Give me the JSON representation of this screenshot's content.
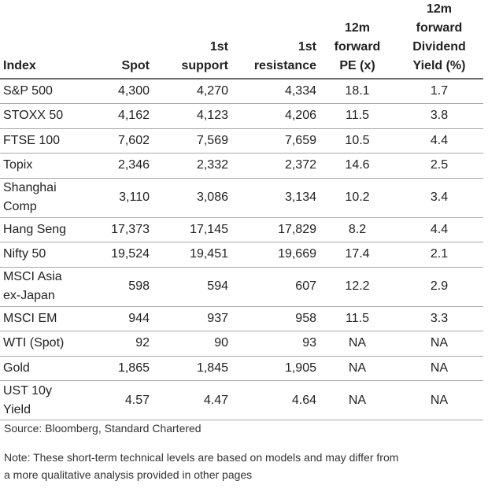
{
  "table": {
    "columns": [
      [
        "Index"
      ],
      [
        "Spot"
      ],
      [
        "1st",
        "support"
      ],
      [
        "1st",
        "resistance"
      ],
      [
        "12m",
        "forward",
        "PE (x)"
      ],
      [
        "12m",
        "forward",
        "Dividend",
        "Yield (%)"
      ]
    ],
    "rows": [
      {
        "name": [
          "S&P 500"
        ],
        "spot": "4,300",
        "support": "4,270",
        "resistance": "4,334",
        "pe": "18.1",
        "yield": "1.7"
      },
      {
        "name": [
          "STOXX 50"
        ],
        "spot": "4,162",
        "support": "4,123",
        "resistance": "4,206",
        "pe": "11.5",
        "yield": "3.8"
      },
      {
        "name": [
          "FTSE 100"
        ],
        "spot": "7,602",
        "support": "7,569",
        "resistance": "7,659",
        "pe": "10.5",
        "yield": "4.4"
      },
      {
        "name": [
          "Topix"
        ],
        "spot": "2,346",
        "support": "2,332",
        "resistance": "2,372",
        "pe": "14.6",
        "yield": "2.5"
      },
      {
        "name": [
          "Shanghai",
          "Comp"
        ],
        "spot": "3,110",
        "support": "3,086",
        "resistance": "3,134",
        "pe": "10.2",
        "yield": "3.4"
      },
      {
        "name": [
          "Hang Seng"
        ],
        "spot": "17,373",
        "support": "17,145",
        "resistance": "17,829",
        "pe": "8.2",
        "yield": "4.4"
      },
      {
        "name": [
          "Nifty 50"
        ],
        "spot": "19,524",
        "support": "19,451",
        "resistance": "19,669",
        "pe": "17.4",
        "yield": "2.1"
      },
      {
        "name": [
          "MSCI Asia",
          "ex-Japan"
        ],
        "spot": "598",
        "support": "594",
        "resistance": "607",
        "pe": "12.2",
        "yield": "2.9"
      },
      {
        "name": [
          "MSCI EM"
        ],
        "spot": "944",
        "support": "937",
        "resistance": "958",
        "pe": "11.5",
        "yield": "3.3"
      },
      {
        "name": [
          "WTI (Spot)"
        ],
        "spot": "92",
        "support": "90",
        "resistance": "93",
        "pe": "NA",
        "yield": "NA"
      },
      {
        "name": [
          "Gold"
        ],
        "spot": "1,865",
        "support": "1,845",
        "resistance": "1,905",
        "pe": "NA",
        "yield": "NA"
      },
      {
        "name": [
          "UST 10y",
          "Yield"
        ],
        "spot": "4.57",
        "support": "4.47",
        "resistance": "4.64",
        "pe": "NA",
        "yield": "NA"
      }
    ]
  },
  "source": "Source: Bloomberg, Standard Chartered",
  "note": [
    "Note: These short-term technical levels are based on models and may differ from",
    "a more qualitative analysis provided in other pages"
  ]
}
